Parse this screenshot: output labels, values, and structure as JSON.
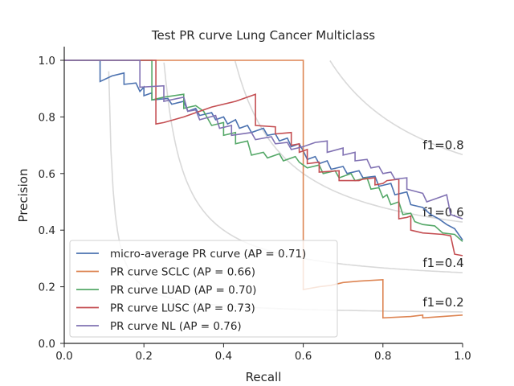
{
  "chart_data": {
    "type": "line",
    "title": "Test PR curve Lung Cancer Multiclass",
    "xlabel": "Recall",
    "ylabel": "Precision",
    "xlim": [
      0.0,
      1.0
    ],
    "ylim": [
      0.0,
      1.05
    ],
    "xticks": [
      "0.0",
      "0.2",
      "0.4",
      "0.6",
      "0.8",
      "1.0"
    ],
    "yticks": [
      "0.0",
      "0.2",
      "0.4",
      "0.6",
      "0.8",
      "1.0"
    ],
    "grid": false,
    "legend_position": "lower-left",
    "iso_f1": [
      {
        "f1": 0.2,
        "label": "f1=0.2"
      },
      {
        "f1": 0.4,
        "label": "f1=0.4"
      },
      {
        "f1": 0.6,
        "label": "f1=0.6"
      },
      {
        "f1": 0.8,
        "label": "f1=0.8"
      }
    ],
    "series": [
      {
        "name": "micro-average PR curve (AP = 0.71)",
        "color": "#4c72b0",
        "points": [
          [
            0.0,
            1.0
          ],
          [
            0.09,
            1.0
          ],
          [
            0.09,
            0.925
          ],
          [
            0.12,
            0.945
          ],
          [
            0.15,
            0.955
          ],
          [
            0.15,
            0.915
          ],
          [
            0.18,
            0.92
          ],
          [
            0.19,
            0.89
          ],
          [
            0.2,
            0.905
          ],
          [
            0.2,
            0.875
          ],
          [
            0.22,
            0.885
          ],
          [
            0.22,
            0.86
          ],
          [
            0.26,
            0.865
          ],
          [
            0.27,
            0.845
          ],
          [
            0.3,
            0.855
          ],
          [
            0.31,
            0.82
          ],
          [
            0.33,
            0.83
          ],
          [
            0.34,
            0.805
          ],
          [
            0.37,
            0.815
          ],
          [
            0.38,
            0.79
          ],
          [
            0.4,
            0.8
          ],
          [
            0.41,
            0.775
          ],
          [
            0.43,
            0.79
          ],
          [
            0.44,
            0.76
          ],
          [
            0.46,
            0.77
          ],
          [
            0.47,
            0.745
          ],
          [
            0.5,
            0.76
          ],
          [
            0.51,
            0.735
          ],
          [
            0.53,
            0.74
          ],
          [
            0.54,
            0.715
          ],
          [
            0.56,
            0.725
          ],
          [
            0.57,
            0.695
          ],
          [
            0.59,
            0.705
          ],
          [
            0.6,
            0.68
          ],
          [
            0.61,
            0.65
          ],
          [
            0.63,
            0.66
          ],
          [
            0.64,
            0.635
          ],
          [
            0.66,
            0.645
          ],
          [
            0.67,
            0.615
          ],
          [
            0.7,
            0.625
          ],
          [
            0.71,
            0.6
          ],
          [
            0.74,
            0.61
          ],
          [
            0.75,
            0.585
          ],
          [
            0.78,
            0.59
          ],
          [
            0.79,
            0.555
          ],
          [
            0.82,
            0.565
          ],
          [
            0.83,
            0.525
          ],
          [
            0.86,
            0.535
          ],
          [
            0.87,
            0.49
          ],
          [
            0.9,
            0.48
          ],
          [
            0.92,
            0.455
          ],
          [
            0.94,
            0.44
          ],
          [
            0.96,
            0.42
          ],
          [
            0.98,
            0.405
          ],
          [
            1.0,
            0.365
          ]
        ]
      },
      {
        "name": "PR curve SCLC (AP = 0.66)",
        "color": "#dd8452",
        "points": [
          [
            0.0,
            1.0
          ],
          [
            0.6,
            1.0
          ],
          [
            0.6,
            0.19
          ],
          [
            0.64,
            0.2
          ],
          [
            0.67,
            0.205
          ],
          [
            0.7,
            0.215
          ],
          [
            0.74,
            0.22
          ],
          [
            0.8,
            0.225
          ],
          [
            0.8,
            0.09
          ],
          [
            0.87,
            0.095
          ],
          [
            0.9,
            0.1
          ],
          [
            0.9,
            0.09
          ],
          [
            0.95,
            0.095
          ],
          [
            1.0,
            0.1
          ]
        ]
      },
      {
        "name": "PR curve LUAD (AP = 0.70)",
        "color": "#55a868",
        "points": [
          [
            0.0,
            1.0
          ],
          [
            0.22,
            1.0
          ],
          [
            0.22,
            0.86
          ],
          [
            0.25,
            0.87
          ],
          [
            0.3,
            0.88
          ],
          [
            0.3,
            0.83
          ],
          [
            0.33,
            0.84
          ],
          [
            0.35,
            0.82
          ],
          [
            0.37,
            0.77
          ],
          [
            0.4,
            0.78
          ],
          [
            0.4,
            0.735
          ],
          [
            0.43,
            0.745
          ],
          [
            0.43,
            0.705
          ],
          [
            0.46,
            0.715
          ],
          [
            0.47,
            0.665
          ],
          [
            0.5,
            0.675
          ],
          [
            0.51,
            0.655
          ],
          [
            0.54,
            0.67
          ],
          [
            0.55,
            0.645
          ],
          [
            0.58,
            0.66
          ],
          [
            0.59,
            0.64
          ],
          [
            0.61,
            0.62
          ],
          [
            0.64,
            0.63
          ],
          [
            0.65,
            0.6
          ],
          [
            0.68,
            0.61
          ],
          [
            0.69,
            0.585
          ],
          [
            0.72,
            0.6
          ],
          [
            0.73,
            0.575
          ],
          [
            0.76,
            0.585
          ],
          [
            0.77,
            0.545
          ],
          [
            0.79,
            0.55
          ],
          [
            0.8,
            0.515
          ],
          [
            0.81,
            0.525
          ],
          [
            0.82,
            0.49
          ],
          [
            0.84,
            0.5
          ],
          [
            0.85,
            0.455
          ],
          [
            0.87,
            0.46
          ],
          [
            0.88,
            0.43
          ],
          [
            0.9,
            0.42
          ],
          [
            0.93,
            0.415
          ],
          [
            0.95,
            0.39
          ],
          [
            0.98,
            0.385
          ],
          [
            1.0,
            0.36
          ]
        ]
      },
      {
        "name": "PR curve LUSC (AP = 0.73)",
        "color": "#c44e52",
        "points": [
          [
            0.0,
            1.0
          ],
          [
            0.23,
            1.0
          ],
          [
            0.23,
            0.775
          ],
          [
            0.25,
            0.78
          ],
          [
            0.3,
            0.8
          ],
          [
            0.37,
            0.835
          ],
          [
            0.43,
            0.855
          ],
          [
            0.48,
            0.88
          ],
          [
            0.48,
            0.77
          ],
          [
            0.53,
            0.765
          ],
          [
            0.53,
            0.74
          ],
          [
            0.57,
            0.745
          ],
          [
            0.57,
            0.7
          ],
          [
            0.59,
            0.705
          ],
          [
            0.59,
            0.675
          ],
          [
            0.61,
            0.685
          ],
          [
            0.61,
            0.635
          ],
          [
            0.64,
            0.64
          ],
          [
            0.64,
            0.605
          ],
          [
            0.69,
            0.61
          ],
          [
            0.69,
            0.575
          ],
          [
            0.74,
            0.575
          ],
          [
            0.75,
            0.58
          ],
          [
            0.78,
            0.585
          ],
          [
            0.78,
            0.56
          ],
          [
            0.8,
            0.565
          ],
          [
            0.81,
            0.575
          ],
          [
            0.84,
            0.58
          ],
          [
            0.84,
            0.44
          ],
          [
            0.86,
            0.445
          ],
          [
            0.87,
            0.45
          ],
          [
            0.87,
            0.4
          ],
          [
            0.9,
            0.39
          ],
          [
            0.95,
            0.385
          ],
          [
            0.97,
            0.38
          ],
          [
            0.98,
            0.315
          ],
          [
            1.0,
            0.31
          ]
        ]
      },
      {
        "name": "PR curve NL (AP = 0.76)",
        "color": "#8172b3",
        "points": [
          [
            0.0,
            1.0
          ],
          [
            0.19,
            1.0
          ],
          [
            0.19,
            0.905
          ],
          [
            0.25,
            0.91
          ],
          [
            0.25,
            0.855
          ],
          [
            0.3,
            0.87
          ],
          [
            0.31,
            0.82
          ],
          [
            0.33,
            0.825
          ],
          [
            0.34,
            0.79
          ],
          [
            0.38,
            0.805
          ],
          [
            0.39,
            0.76
          ],
          [
            0.42,
            0.77
          ],
          [
            0.42,
            0.735
          ],
          [
            0.47,
            0.745
          ],
          [
            0.48,
            0.72
          ],
          [
            0.52,
            0.73
          ],
          [
            0.53,
            0.705
          ],
          [
            0.56,
            0.71
          ],
          [
            0.57,
            0.685
          ],
          [
            0.6,
            0.695
          ],
          [
            0.61,
            0.7
          ],
          [
            0.63,
            0.71
          ],
          [
            0.66,
            0.715
          ],
          [
            0.66,
            0.675
          ],
          [
            0.7,
            0.69
          ],
          [
            0.7,
            0.665
          ],
          [
            0.73,
            0.675
          ],
          [
            0.73,
            0.645
          ],
          [
            0.76,
            0.65
          ],
          [
            0.77,
            0.62
          ],
          [
            0.79,
            0.625
          ],
          [
            0.8,
            0.6
          ],
          [
            0.82,
            0.605
          ],
          [
            0.83,
            0.58
          ],
          [
            0.86,
            0.585
          ],
          [
            0.86,
            0.545
          ],
          [
            0.9,
            0.53
          ],
          [
            0.91,
            0.5
          ],
          [
            0.93,
            0.51
          ],
          [
            0.95,
            0.52
          ],
          [
            0.96,
            0.525
          ],
          [
            0.97,
            0.455
          ],
          [
            1.0,
            0.44
          ]
        ]
      }
    ]
  }
}
